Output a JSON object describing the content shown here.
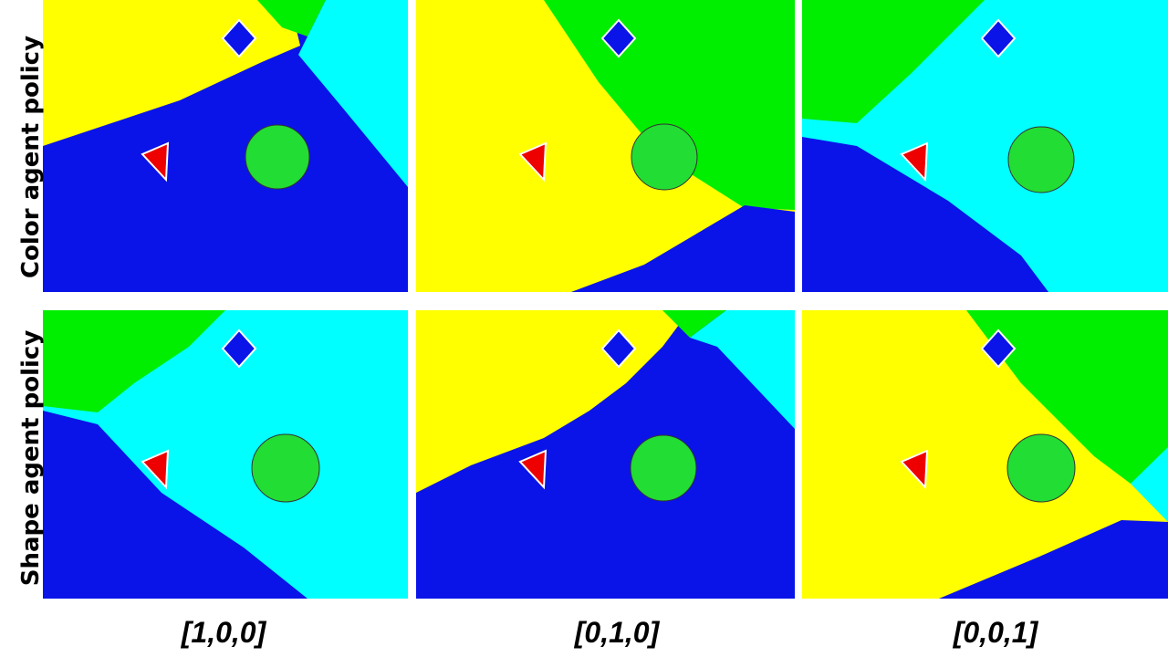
{
  "rows": [
    {
      "label": "Color agent policy"
    },
    {
      "label": "Shape agent policy"
    }
  ],
  "columns": [
    {
      "label": "[1,0,0]"
    },
    {
      "label": "[0,1,0]"
    },
    {
      "label": "[0,0,1]"
    }
  ]
}
